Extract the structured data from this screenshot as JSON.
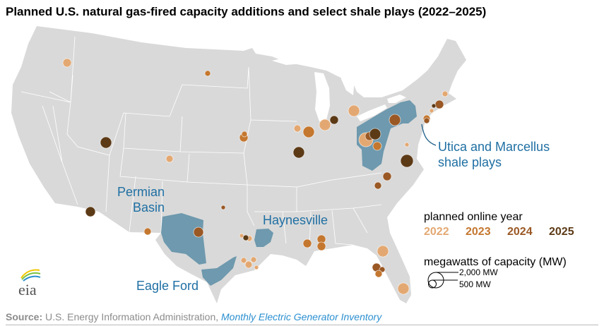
{
  "title": "Planned U.S. natural gas-fired capacity additions and select shale plays (2022–2025)",
  "shale_labels": {
    "permian": "Permian\nBasin",
    "haynesville": "Haynesville",
    "eagle_ford": "Eagle Ford",
    "utica_marcellus": "Utica and Marcellus\nshale plays"
  },
  "legend": {
    "year_heading": "planned online year",
    "years": [
      {
        "label": "2022",
        "color": "#e3a872"
      },
      {
        "label": "2023",
        "color": "#c4772f"
      },
      {
        "label": "2024",
        "color": "#9a5824"
      },
      {
        "label": "2025",
        "color": "#5c3a16"
      }
    ],
    "size_heading": "megawatts of capacity (MW)",
    "size_large": "2,000 MW",
    "size_small": "500 MW"
  },
  "colors": {
    "land": "#d9d9d9",
    "shale": "#6e99ae",
    "label": "#1f6fa3"
  },
  "logo": "eia",
  "source": {
    "prefix": "Source:",
    "text": " U.S. Energy Information Administration, ",
    "link": "Monthly Electric Generator Inventory"
  },
  "plants": [
    {
      "year": "2022",
      "mw": 600
    },
    {
      "year": "2023",
      "mw": 260
    },
    {
      "year": "2025",
      "mw": 1060
    },
    {
      "year": "2022",
      "mw": 410
    },
    {
      "year": "2023",
      "mw": 600
    },
    {
      "year": "2023",
      "mw": 260
    },
    {
      "year": "2022",
      "mw": 410
    },
    {
      "year": "2025",
      "mw": 1060
    },
    {
      "year": "2023",
      "mw": 1060
    },
    {
      "year": "2022",
      "mw": 1060
    },
    {
      "year": "2025",
      "mw": 600
    },
    {
      "year": "2022",
      "mw": 1060
    },
    {
      "year": "2022",
      "mw": 1650
    },
    {
      "year": "2024",
      "mw": 600
    },
    {
      "year": "2025",
      "mw": 1060
    },
    {
      "year": "2023",
      "mw": 600
    },
    {
      "year": "2024",
      "mw": 1060
    },
    {
      "year": "2025",
      "mw": 1340
    },
    {
      "year": "2022",
      "mw": 150
    },
    {
      "year": "2024",
      "mw": 600
    },
    {
      "year": "2024",
      "mw": 600
    },
    {
      "year": "2025",
      "mw": 150
    },
    {
      "year": "2022",
      "mw": 150
    },
    {
      "year": "2022",
      "mw": 260
    },
    {
      "year": "2023",
      "mw": 410
    },
    {
      "year": "2024",
      "mw": 260
    },
    {
      "year": "2024",
      "mw": 410
    },
    {
      "year": "2025",
      "mw": 810
    },
    {
      "year": "2024",
      "mw": 150
    },
    {
      "year": "2023",
      "mw": 410
    },
    {
      "year": "2024",
      "mw": 810
    },
    {
      "year": "2022",
      "mw": 150
    },
    {
      "year": "2022",
      "mw": 260
    },
    {
      "year": "2025",
      "mw": 260
    },
    {
      "year": "2022",
      "mw": 260
    },
    {
      "year": "2022",
      "mw": 410
    },
    {
      "year": "2022",
      "mw": 260
    },
    {
      "year": "2022",
      "mw": 150
    },
    {
      "year": "2023",
      "mw": 600
    },
    {
      "year": "2023",
      "mw": 600
    },
    {
      "year": "2023",
      "mw": 600
    },
    {
      "year": "2022",
      "mw": 1060
    },
    {
      "year": "2024",
      "mw": 600
    },
    {
      "year": "2024",
      "mw": 260
    },
    {
      "year": "2023",
      "mw": 410
    },
    {
      "year": "2022",
      "mw": 1060
    }
  ]
}
